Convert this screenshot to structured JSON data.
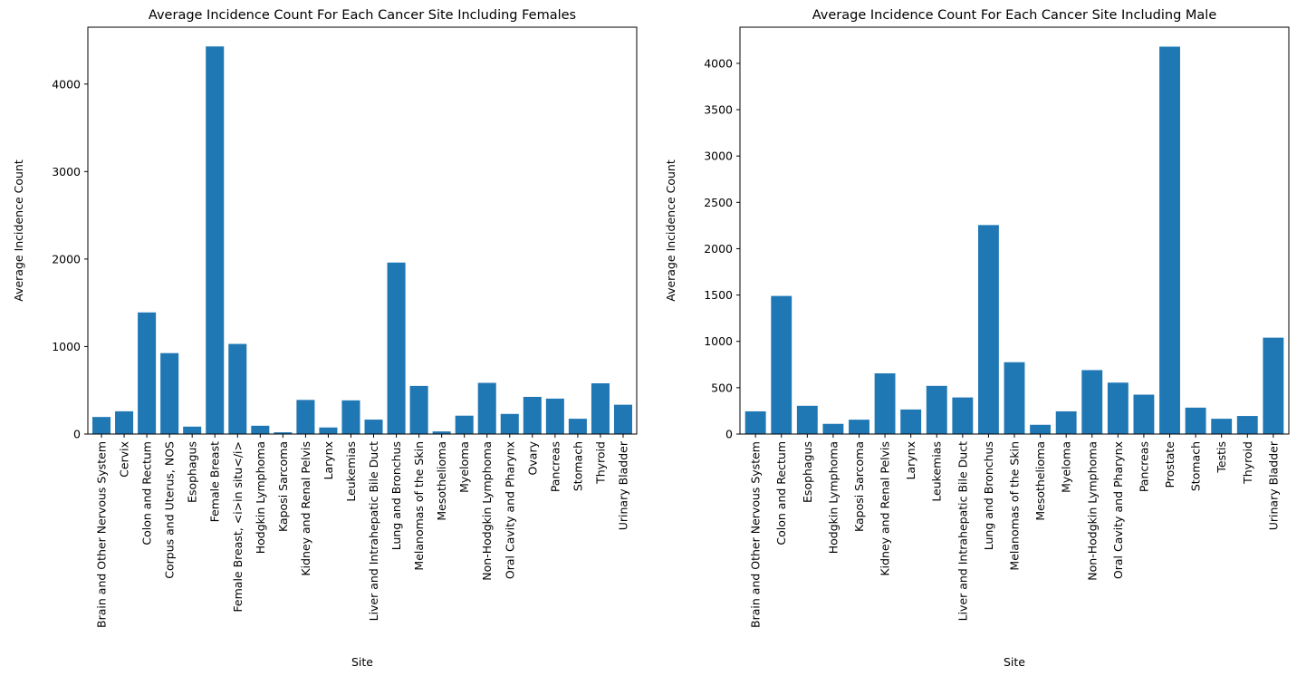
{
  "chart_data": [
    {
      "type": "bar",
      "title": "Average Incidence Count For Each Cancer Site Including Females",
      "xlabel": "Site",
      "ylabel": "Average Incidence Count",
      "ylim": [
        0,
        4650
      ],
      "yticks": [
        0,
        1000,
        2000,
        3000,
        4000
      ],
      "grid": false,
      "legend": "none",
      "color": "#1f77b4",
      "categories": [
        "Brain and Other Nervous System",
        "Cervix",
        "Colon and Rectum",
        "Corpus and Uterus, NOS",
        "Esophagus",
        "Female Breast",
        "Female Breast, <i>in situ</i>",
        "Hodgkin Lymphoma",
        "Kaposi Sarcoma",
        "Kidney and Renal Pelvis",
        "Larynx",
        "Leukemias",
        "Liver and Intrahepatic Bile Duct",
        "Lung and Bronchus",
        "Melanomas of the Skin",
        "Mesothelioma",
        "Myeloma",
        "Non-Hodgkin Lymphoma",
        "Oral Cavity and Pharynx",
        "Ovary",
        "Pancreas",
        "Stomach",
        "Thyroid",
        "Urinary Bladder"
      ],
      "values": [
        195,
        260,
        1390,
        925,
        85,
        4430,
        1030,
        95,
        20,
        390,
        75,
        385,
        165,
        1960,
        550,
        30,
        210,
        585,
        230,
        425,
        405,
        175,
        580,
        335
      ]
    },
    {
      "type": "bar",
      "title": "Average Incidence Count For Each Cancer Site Including Male",
      "xlabel": "Site",
      "ylabel": "Average Incidence Count",
      "ylim": [
        0,
        4390
      ],
      "yticks": [
        0,
        500,
        1000,
        1500,
        2000,
        2500,
        3000,
        3500,
        4000
      ],
      "grid": false,
      "legend": "none",
      "color": "#1f77b4",
      "categories": [
        "Brain and Other Nervous System",
        "Colon and Rectum",
        "Esophagus",
        "Hodgkin Lymphoma",
        "Kaposi Sarcoma",
        "Kidney and Renal Pelvis",
        "Larynx",
        "Leukemias",
        "Liver and Intrahepatic Bile Duct",
        "Lung and Bronchus",
        "Melanomas of the Skin",
        "Mesothelioma",
        "Myeloma",
        "Non-Hodgkin Lymphoma",
        "Oral Cavity and Pharynx",
        "Pancreas",
        "Prostate",
        "Stomach",
        "Testis",
        "Thyroid",
        "Urinary Bladder"
      ],
      "values": [
        245,
        1490,
        305,
        110,
        155,
        655,
        265,
        520,
        395,
        2255,
        775,
        100,
        245,
        690,
        555,
        425,
        4180,
        285,
        165,
        195,
        1040
      ]
    }
  ]
}
